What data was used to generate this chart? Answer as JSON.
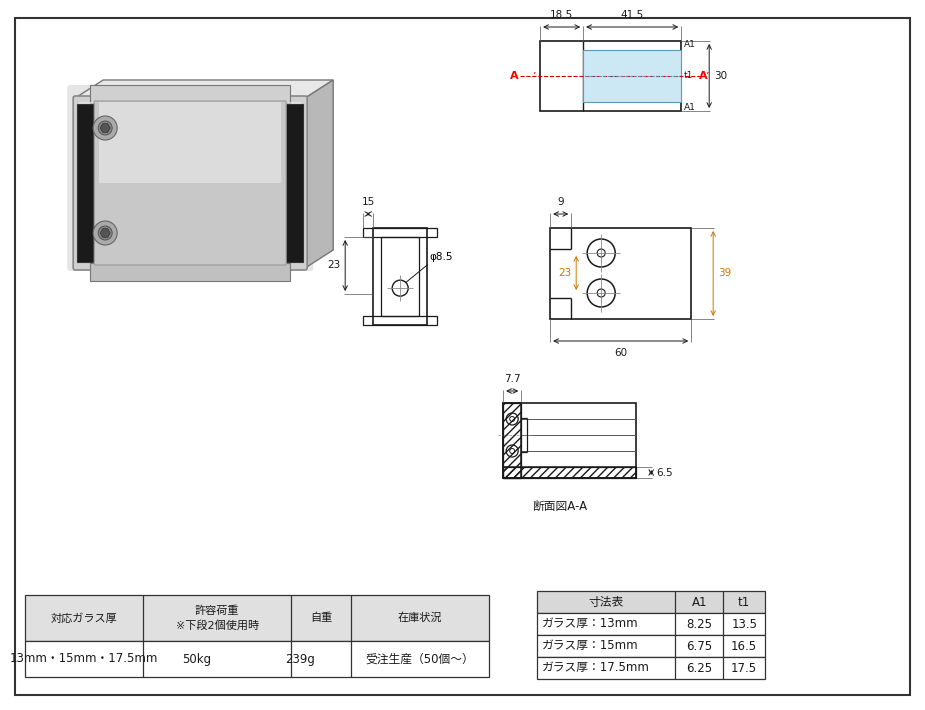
{
  "bg_color": "#ffffff",
  "blue_fill": "#cce8f4",
  "table1": {
    "headers": [
      "対応ガラス厚",
      "許容荷重\n※下段2個使用時",
      "自重",
      "在庫状況"
    ],
    "row": [
      "13mm・15mm・17.5mm",
      "50kg",
      "239g",
      "受注生産（50個～）"
    ]
  },
  "table2": {
    "headers": [
      "寸法表",
      "A1",
      "t1"
    ],
    "rows": [
      [
        "ガラス厚：13mm",
        "8.25",
        "13.5"
      ],
      [
        "ガラス厚：15mm",
        "6.75",
        "16.5"
      ],
      [
        "ガラス厚：17.5mm",
        "6.25",
        "17.5"
      ]
    ]
  },
  "section_label": "断面図A-A",
  "dim_18_5": "18.5",
  "dim_41_5": "41.5",
  "dim_30": "30",
  "dim_15": "15",
  "dim_phi8_5": "φ8.5",
  "dim_23": "23",
  "dim_9": "9",
  "dim_60": "60",
  "dim_39": "39",
  "dim_7_7": "7.7",
  "dim_6_5": "6.5",
  "label_A1": "A1",
  "label_t1": "t1"
}
